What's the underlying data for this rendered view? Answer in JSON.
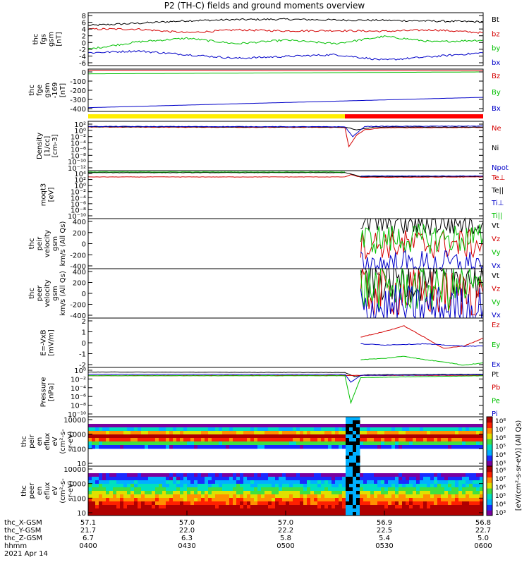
{
  "title": "P2 (TH-C) fields and ground moments overview",
  "colors": {
    "black": "#000000",
    "red": "#d40000",
    "green": "#00c000",
    "blue": "#0000c8",
    "yellow": "#ffee00",
    "barred": "#ff0000"
  },
  "chart_data": [
    {
      "type": "line",
      "panel": "fgs",
      "ylabel": [
        "thc",
        "fgs",
        "gsm",
        "[nT]"
      ],
      "yticks": [
        "8",
        "6",
        "4",
        "2",
        "0",
        "-2",
        "-4",
        "-6"
      ],
      "ylim": [
        -6,
        8.5
      ],
      "series": [
        {
          "name": "Bt",
          "color": "#000000",
          "x": [
            4.0,
            4.25,
            4.5,
            4.75,
            5.0,
            5.25,
            5.5,
            5.75,
            6.0
          ],
          "values": [
            5.0,
            5.6,
            6.3,
            6.6,
            6.7,
            6.5,
            6.4,
            6.2,
            6.0
          ]
        },
        {
          "name": "bz",
          "color": "#d40000",
          "x": [
            4.0,
            4.25,
            4.5,
            4.75,
            5.0,
            5.25,
            5.5,
            5.75,
            6.0
          ],
          "values": [
            4.0,
            4.0,
            3.0,
            3.8,
            3.5,
            3.6,
            3.4,
            3.8,
            3.0
          ]
        },
        {
          "name": "by",
          "color": "#00c000",
          "x": [
            4.0,
            4.25,
            4.5,
            4.75,
            5.0,
            5.25,
            5.5,
            5.75,
            6.0
          ],
          "values": [
            -1.5,
            0.5,
            1.5,
            0.0,
            1.0,
            0.0,
            2.0,
            0.5,
            1.0
          ]
        },
        {
          "name": "bx",
          "color": "#0000c8",
          "x": [
            4.0,
            4.25,
            4.5,
            4.75,
            5.0,
            5.25,
            5.5,
            5.75,
            6.0
          ],
          "values": [
            -2.5,
            -2.0,
            -3.0,
            -4.0,
            -3.5,
            -3.0,
            -4.5,
            -3.5,
            -2.5
          ]
        }
      ]
    },
    {
      "type": "line",
      "panel": "fge",
      "ylabel": [
        "thc",
        "fge",
        "gsm",
        "-169",
        "[nT]"
      ],
      "yticks": [
        "0",
        "-100",
        "-200",
        "-300",
        "-400"
      ],
      "ylim": [
        -440,
        10
      ],
      "series": [
        {
          "name": "Bz",
          "color": "#d40000",
          "x": [
            4.0,
            6.0
          ],
          "values": [
            -2,
            -8
          ]
        },
        {
          "name": "By",
          "color": "#00c000",
          "x": [
            4.0,
            6.0
          ],
          "values": [
            -40,
            -20
          ]
        },
        {
          "name": "Bx",
          "color": "#0000c8",
          "x": [
            4.0,
            6.0
          ],
          "values": [
            -400,
            -290
          ]
        }
      ]
    },
    {
      "type": "line",
      "panel": "density",
      "ylabel": [
        "Density",
        "[1/cc]",
        "[cm-3]"
      ],
      "yticks": [
        "10²",
        "10⁰",
        "10⁻²",
        "10⁻⁴",
        "10⁻⁶",
        "10⁻⁸",
        "10⁻¹⁰",
        "10⁻¹²"
      ],
      "ylim": [
        -12.5,
        2
      ],
      "series": [
        {
          "name": "Ne",
          "color": "#d40000",
          "x": [
            4.0,
            5.3,
            5.32,
            5.36,
            5.4,
            5.5,
            6.0
          ],
          "values": [
            0.3,
            0.2,
            -5.5,
            -2.0,
            -0.5,
            0.1,
            0.2
          ]
        },
        {
          "name": "Ni",
          "color": "#000000",
          "x": [
            4.0,
            5.3,
            5.36,
            5.45,
            6.0
          ],
          "values": [
            0.4,
            0.3,
            -0.5,
            0.3,
            0.3
          ]
        },
        {
          "name": "Npot",
          "color": "#0000c8",
          "x": [
            4.0,
            5.3,
            5.34,
            5.4,
            6.0
          ],
          "values": [
            0.5,
            0.4,
            -2.5,
            0.5,
            0.6
          ]
        }
      ]
    },
    {
      "type": "line",
      "panel": "temp",
      "ylabel": [
        "moqt3",
        "[eV]"
      ],
      "yticks": [
        "10⁴",
        "10²",
        "10⁰",
        "10⁻²",
        "10⁻⁴",
        "10⁻⁶",
        "10⁻⁸",
        "10⁻¹⁰"
      ],
      "ylim": [
        -10.5,
        4
      ],
      "series": [
        {
          "name": "Te⊥",
          "color": "#d40000",
          "x": [
            4.0,
            5.3,
            5.33,
            5.38,
            6.0
          ],
          "values": [
            2.1,
            2.1,
            2.8,
            2.0,
            2.1
          ]
        },
        {
          "name": "Te||",
          "color": "#000000",
          "x": [
            4.0,
            5.3,
            5.33,
            5.38,
            6.0
          ],
          "values": [
            3.4,
            3.4,
            3.0,
            2.2,
            2.3
          ]
        },
        {
          "name": "Ti⊥",
          "color": "#0000c8",
          "x": [
            5.38,
            6.0
          ],
          "values": [
            2.4,
            2.4
          ]
        },
        {
          "name": "Ti||",
          "color": "#00c000",
          "x": [
            4.0,
            5.3
          ],
          "values": [
            3.6,
            3.6
          ]
        }
      ]
    },
    {
      "type": "line",
      "panel": "peir-vel",
      "ylabel": [
        "thc",
        "peir",
        "velocity",
        "gsm",
        "km/s (All Qs)"
      ],
      "yticks": [
        "400",
        "200",
        "0",
        "-200",
        "-400"
      ],
      "ylim": [
        -440,
        440
      ],
      "series": [
        {
          "name": "Vt",
          "color": "#000000",
          "x": [
            5.38,
            6.0
          ],
          "values": [
            370,
            380
          ]
        },
        {
          "name": "Vz",
          "color": "#d40000",
          "x": [
            5.38,
            6.0
          ],
          "values": [
            -10,
            -10
          ]
        },
        {
          "name": "Vy",
          "color": "#00c000",
          "x": [
            5.38,
            6.0
          ],
          "values": [
            70,
            100
          ]
        },
        {
          "name": "Vx",
          "color": "#0000c8",
          "x": [
            5.38,
            6.0
          ],
          "values": [
            -370,
            -375
          ]
        }
      ]
    },
    {
      "type": "line",
      "panel": "peer-vel",
      "ylabel": [
        "thc",
        "peer",
        "velocity",
        "gsm",
        "km/s (All Qs)"
      ],
      "yticks": [
        "400",
        "200",
        "0",
        "-200",
        "-400"
      ],
      "ylim": [
        -440,
        440
      ],
      "series": [
        {
          "name": "Vt",
          "color": "#000000",
          "x": [
            5.38,
            6.0
          ],
          "values": [
            270,
            290
          ]
        },
        {
          "name": "Vz",
          "color": "#d40000",
          "x": [
            5.38,
            6.0
          ],
          "values": [
            10,
            10
          ]
        },
        {
          "name": "Vy",
          "color": "#00c000",
          "x": [
            5.38,
            6.0
          ],
          "values": [
            100,
            110
          ]
        },
        {
          "name": "Vx",
          "color": "#0000c8",
          "x": [
            5.38,
            6.0
          ],
          "values": [
            -270,
            -285
          ]
        }
      ]
    },
    {
      "type": "line",
      "panel": "efield",
      "ylabel": [
        "E=-VxB",
        "[mV/m]"
      ],
      "yticks": [
        "2",
        "1",
        "0",
        "-1",
        "-2"
      ],
      "ylim": [
        -2.2,
        2.2
      ],
      "series": [
        {
          "name": "Ez",
          "color": "#d40000",
          "x": [
            5.38,
            5.5,
            5.6,
            5.7,
            5.8,
            5.9,
            6.0
          ],
          "values": [
            0.5,
            1.0,
            1.5,
            0.5,
            -0.5,
            -0.3,
            0.4
          ]
        },
        {
          "name": "Ey",
          "color": "#00c000",
          "x": [
            5.38,
            5.5,
            5.6,
            5.7,
            5.8,
            5.9,
            6.0
          ],
          "values": [
            -1.5,
            -1.4,
            -1.2,
            -1.5,
            -1.7,
            -2.0,
            -1.8
          ]
        },
        {
          "name": "Ex",
          "color": "#0000c8",
          "x": [
            5.38,
            5.5,
            5.7,
            5.8,
            5.9,
            6.0
          ],
          "values": [
            -0.1,
            -0.2,
            -0.1,
            -0.2,
            -0.3,
            -0.3
          ]
        }
      ]
    },
    {
      "type": "line",
      "panel": "pressure",
      "ylabel": [
        "Pressure",
        "[nPa]"
      ],
      "yticks": [
        "10⁰",
        "10⁻²",
        "10⁻⁴",
        "10⁻⁶",
        "10⁻⁸",
        "10⁻¹⁰"
      ],
      "ylim": [
        -10.5,
        0.2
      ],
      "series": [
        {
          "name": "Pt",
          "color": "#000000",
          "x": [
            4.0,
            5.3,
            5.35,
            5.4,
            6.0
          ],
          "values": [
            -0.8,
            -0.9,
            -1.8,
            -1.4,
            -1.3
          ]
        },
        {
          "name": "Pb",
          "color": "#d40000",
          "x": [
            4.0,
            6.0
          ],
          "values": [
            -1.6,
            -1.5
          ]
        },
        {
          "name": "Pe",
          "color": "#00c000",
          "x": [
            4.0,
            5.3,
            5.33,
            5.38,
            6.0
          ],
          "values": [
            -1.6,
            -1.6,
            -7.5,
            -2.0,
            -1.6
          ]
        },
        {
          "name": "Pi",
          "color": "#0000c8",
          "x": [
            4.0,
            5.3,
            5.33,
            5.38,
            6.0
          ],
          "values": [
            -1.3,
            -1.3,
            -3.0,
            -1.5,
            -1.4
          ]
        }
      ]
    },
    {
      "type": "heatmap",
      "panel": "peir-spec",
      "ylabel": [
        "thc",
        "peir",
        "en",
        "eflux",
        "eV",
        "(cm²-s-",
        "sr-eV)"
      ],
      "yticks": [
        "10000",
        "1000",
        "100",
        "10"
      ],
      "ylim": [
        5,
        20000
      ]
    },
    {
      "type": "heatmap",
      "panel": "peer-spec",
      "ylabel": [
        "thc",
        "peer",
        "en",
        "eflux",
        "eV",
        "(cm²-s-",
        "sr-eV)"
      ],
      "yticks": [
        "10000",
        "1000",
        "100",
        "10"
      ],
      "ylim": [
        5,
        20000
      ]
    }
  ],
  "colorbars": [
    {
      "ticks": [
        "10⁸",
        "10⁷",
        "10⁶",
        "10⁵",
        "10⁴",
        "10³"
      ]
    },
    {
      "ticks": [
        "10⁸",
        "10⁷",
        "10⁶",
        "10⁵",
        "10⁴",
        "10³"
      ]
    }
  ],
  "colorbar_label": "[eV/(cm²-s-sr-eV)] (All Qs)",
  "xaxis": {
    "rows": [
      {
        "label": "thc_X-GSM",
        "values": [
          "57.1",
          "57.0",
          "57.0",
          "56.9",
          "56.8"
        ]
      },
      {
        "label": "thc_Y-GSM",
        "values": [
          "21.7",
          "22.0",
          "22.2",
          "22.5",
          "22.7"
        ]
      },
      {
        "label": "thc_Z-GSM",
        "values": [
          "6.7",
          "6.3",
          "5.8",
          "5.4",
          "5.0"
        ]
      },
      {
        "label": "hhmm",
        "values": [
          "0400",
          "0430",
          "0500",
          "0530",
          "0600"
        ]
      }
    ],
    "date": "2021 Apr 14"
  }
}
